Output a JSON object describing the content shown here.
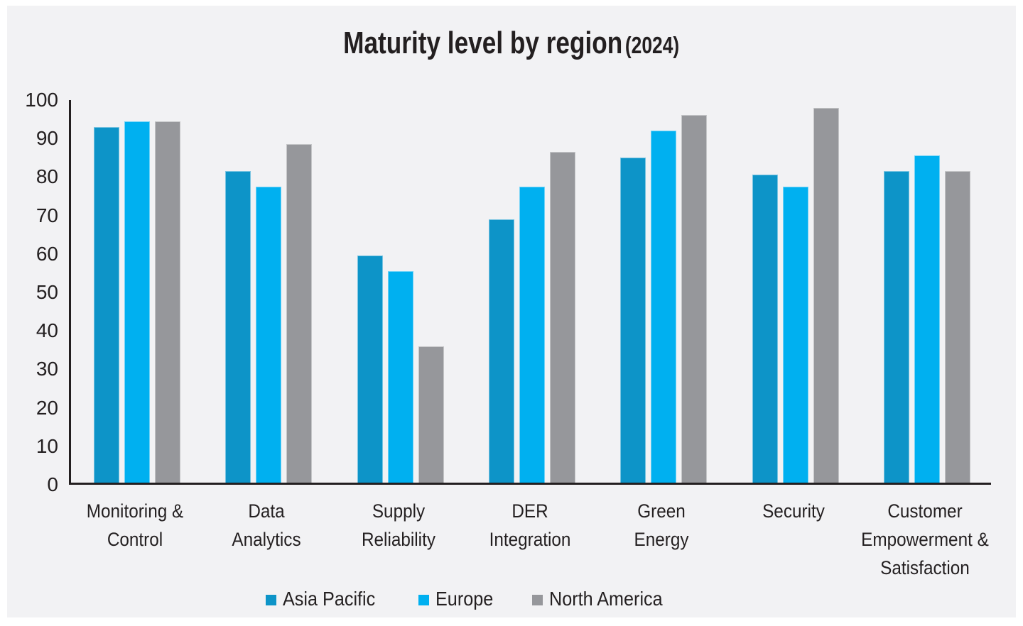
{
  "title": {
    "main": "Maturity level by region",
    "suffix": "(2024)"
  },
  "colors": {
    "background_panel": "#f2f2f4",
    "page_border": "#ffffff",
    "axis_and_text": "#231f20",
    "asia_pacific": "#0d94c8",
    "europe": "#00b0f0",
    "north_america": "#96979b"
  },
  "chart_data": {
    "type": "bar",
    "title": "Maturity level by region (2024)",
    "xlabel": "",
    "ylabel": "",
    "ylim": [
      0,
      100
    ],
    "yticks": [
      0,
      10,
      20,
      30,
      40,
      50,
      60,
      70,
      80,
      90,
      100
    ],
    "grid": false,
    "legend_position": "bottom",
    "categories": [
      "Monitoring & Control",
      "Data Analytics",
      "Supply Reliability",
      "DER Integration",
      "Green Energy",
      "Security",
      "Customer Empowerment & Satisfaction"
    ],
    "category_lines": [
      [
        "Monitoring &",
        "Control"
      ],
      [
        "Data",
        "Analytics"
      ],
      [
        "Supply",
        "Reliability"
      ],
      [
        "DER",
        "Integration"
      ],
      [
        "Green",
        "Energy"
      ],
      [
        "Security"
      ],
      [
        "Customer",
        "Empowerment &",
        "Satisfaction"
      ]
    ],
    "series": [
      {
        "name": "Asia Pacific",
        "color": "#0d94c8",
        "values": [
          92.5,
          81,
          59,
          68.5,
          84.5,
          80,
          81
        ]
      },
      {
        "name": "Europe",
        "color": "#00b0f0",
        "values": [
          94,
          77,
          55,
          77,
          91.5,
          77,
          85
        ]
      },
      {
        "name": "North America",
        "color": "#96979b",
        "values": [
          94,
          88,
          35.5,
          86,
          95.5,
          97.5,
          81
        ]
      }
    ]
  }
}
